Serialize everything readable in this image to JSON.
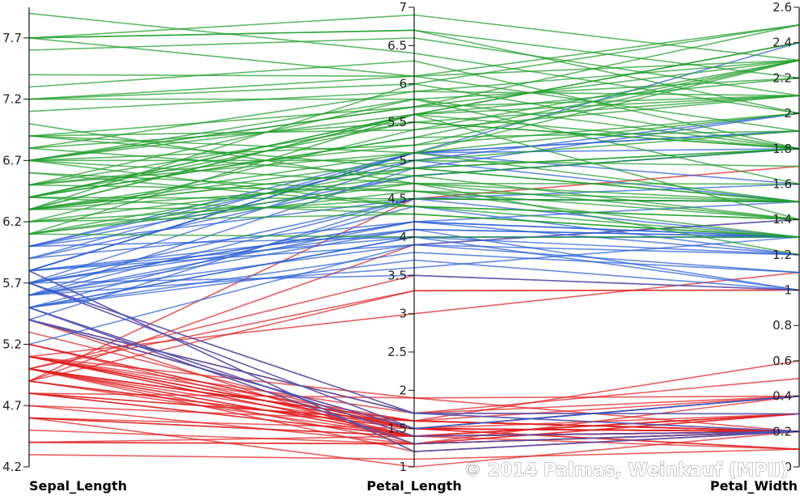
{
  "chart_data": {
    "type": "parallel-coordinates",
    "axes": [
      {
        "name": "Sepal_Length",
        "min": 4.2,
        "max": 7.95,
        "ticks": [
          4.2,
          4.7,
          5.2,
          5.7,
          6.2,
          6.7,
          7.2,
          7.7
        ],
        "tick_labels": [
          "4.2",
          "4.7",
          "5.2",
          "5.7",
          "6.2",
          "6.7",
          "7.2",
          "7.7"
        ]
      },
      {
        "name": "Petal_Length",
        "min": 1,
        "max": 7,
        "ticks": [
          1,
          1.5,
          2,
          2.5,
          3,
          3.5,
          4,
          4.5,
          5,
          5.5,
          6,
          6.5,
          7
        ],
        "tick_labels": [
          "1",
          "1.5",
          "2",
          "2.5",
          "3",
          "3.5",
          "4",
          "4.5",
          "5",
          "5.5",
          "6",
          "6.5",
          "7"
        ]
      },
      {
        "name": "Petal_Width",
        "min": 0,
        "max": 2.6,
        "ticks": [
          0,
          0.2,
          0.4,
          0.6,
          0.8,
          1,
          1.2,
          1.4,
          1.6,
          1.8,
          2,
          2.2,
          2.4,
          2.6
        ],
        "tick_labels": [
          "0",
          "0.2",
          "0.4",
          "0.6",
          "0.8",
          "1",
          "1.2",
          "1.4",
          "1.6",
          "1.8",
          "2",
          "2.2",
          "2.4",
          "2.6"
        ]
      }
    ],
    "groups": [
      {
        "color": "#e02020",
        "rows": [
          [
            5.1,
            1.4,
            0.2
          ],
          [
            4.9,
            1.4,
            0.2
          ],
          [
            4.7,
            1.3,
            0.2
          ],
          [
            4.6,
            1.5,
            0.2
          ],
          [
            5.0,
            1.4,
            0.2
          ],
          [
            5.4,
            1.7,
            0.4
          ],
          [
            4.6,
            1.4,
            0.3
          ],
          [
            5.0,
            1.5,
            0.2
          ],
          [
            4.4,
            1.4,
            0.2
          ],
          [
            4.9,
            1.5,
            0.1
          ],
          [
            5.4,
            1.5,
            0.2
          ],
          [
            4.8,
            1.6,
            0.2
          ],
          [
            4.8,
            1.4,
            0.1
          ],
          [
            4.3,
            1.1,
            0.1
          ],
          [
            5.8,
            1.2,
            0.2
          ],
          [
            5.7,
            1.5,
            0.4
          ],
          [
            5.4,
            1.3,
            0.4
          ],
          [
            5.1,
            1.4,
            0.3
          ],
          [
            5.7,
            1.7,
            0.3
          ],
          [
            5.1,
            1.5,
            0.3
          ],
          [
            5.4,
            1.7,
            0.2
          ],
          [
            5.1,
            1.5,
            0.4
          ],
          [
            4.6,
            1.0,
            0.2
          ],
          [
            5.1,
            1.7,
            0.5
          ],
          [
            4.8,
            1.9,
            0.2
          ],
          [
            5.0,
            1.6,
            0.2
          ],
          [
            5.0,
            1.6,
            0.4
          ],
          [
            5.2,
            1.5,
            0.2
          ],
          [
            5.2,
            1.4,
            0.2
          ],
          [
            4.7,
            1.6,
            0.2
          ],
          [
            4.8,
            1.6,
            0.2
          ],
          [
            5.4,
            1.5,
            0.4
          ],
          [
            5.2,
            1.5,
            0.1
          ],
          [
            5.5,
            1.4,
            0.2
          ],
          [
            4.9,
            1.5,
            0.2
          ],
          [
            5.0,
            1.2,
            0.2
          ],
          [
            5.5,
            1.3,
            0.2
          ],
          [
            4.4,
            1.3,
            0.2
          ],
          [
            5.1,
            1.5,
            0.2
          ],
          [
            5.0,
            1.3,
            0.3
          ],
          [
            4.5,
            1.3,
            0.3
          ],
          [
            4.4,
            1.3,
            0.2
          ],
          [
            5.0,
            1.6,
            0.6
          ],
          [
            5.1,
            1.9,
            0.4
          ],
          [
            4.8,
            1.4,
            0.3
          ],
          [
            5.1,
            1.6,
            0.2
          ],
          [
            4.6,
            1.4,
            0.2
          ],
          [
            5.3,
            1.5,
            0.2
          ],
          [
            5.0,
            1.4,
            0.2
          ],
          [
            4.9,
            4.5,
            1.7
          ],
          [
            4.9,
            3.3,
            1.0
          ],
          [
            5.0,
            3.5,
            1.0
          ],
          [
            5.1,
            3.0,
            1.1
          ],
          [
            5.0,
            3.3,
            1.0
          ],
          [
            4.9,
            3.9,
            1.4
          ]
        ]
      },
      {
        "color": "#2a5fd6",
        "rows": [
          [
            5.5,
            4.0,
            1.3
          ],
          [
            5.7,
            4.5,
            1.3
          ],
          [
            5.2,
            3.9,
            1.4
          ],
          [
            5.9,
            4.2,
            1.5
          ],
          [
            6.0,
            4.0,
            1.0
          ],
          [
            5.6,
            3.6,
            1.3
          ],
          [
            5.6,
            4.5,
            1.5
          ],
          [
            5.8,
            4.1,
            1.0
          ],
          [
            5.6,
            3.9,
            1.1
          ],
          [
            5.9,
            4.8,
            1.8
          ],
          [
            5.7,
            3.5,
            1.0
          ],
          [
            5.5,
            3.8,
            1.1
          ],
          [
            5.5,
            3.7,
            1.0
          ],
          [
            5.8,
            3.9,
            1.2
          ],
          [
            6.0,
            5.1,
            1.6
          ],
          [
            5.4,
            4.5,
            1.5
          ],
          [
            6.0,
            4.5,
            1.6
          ],
          [
            5.6,
            4.1,
            1.3
          ],
          [
            5.5,
            4.0,
            1.3
          ],
          [
            5.5,
            4.4,
            1.2
          ],
          [
            5.8,
            4.0,
            1.2
          ],
          [
            5.6,
            4.2,
            1.3
          ],
          [
            5.7,
            4.2,
            1.2
          ],
          [
            5.7,
            4.2,
            1.3
          ],
          [
            5.7,
            4.1,
            1.3
          ],
          [
            5.8,
            5.1,
            2.4
          ],
          [
            5.7,
            5.0,
            2.0
          ],
          [
            5.8,
            5.1,
            1.9
          ],
          [
            5.6,
            4.9,
            2.0
          ],
          [
            5.8,
            5.1,
            1.9
          ],
          [
            6.0,
            4.8,
            1.8
          ],
          [
            5.9,
            5.1,
            1.8
          ],
          [
            6.0,
            5.0,
            1.5
          ],
          [
            5.4,
            1.5,
            0.4
          ],
          [
            5.5,
            1.4,
            0.2
          ],
          [
            5.4,
            1.7,
            0.2
          ],
          [
            5.7,
            1.5,
            0.4
          ],
          [
            5.8,
            1.2,
            0.2
          ],
          [
            5.7,
            1.7,
            0.3
          ],
          [
            5.5,
            1.3,
            0.2
          ]
        ]
      },
      {
        "color": "#1f9e2a",
        "rows": [
          [
            7.0,
            4.7,
            1.4
          ],
          [
            6.4,
            4.5,
            1.5
          ],
          [
            6.9,
            4.9,
            1.5
          ],
          [
            6.5,
            4.6,
            1.5
          ],
          [
            6.3,
            4.7,
            1.6
          ],
          [
            6.6,
            4.6,
            1.3
          ],
          [
            6.7,
            4.4,
            1.4
          ],
          [
            6.2,
            4.5,
            1.5
          ],
          [
            6.1,
            4.0,
            1.3
          ],
          [
            6.3,
            4.9,
            1.5
          ],
          [
            6.1,
            4.7,
            1.2
          ],
          [
            6.4,
            4.3,
            1.3
          ],
          [
            6.6,
            4.4,
            1.4
          ],
          [
            6.8,
            4.8,
            1.4
          ],
          [
            6.7,
            5.0,
            1.7
          ],
          [
            6.7,
            4.7,
            1.5
          ],
          [
            6.3,
            4.4,
            1.3
          ],
          [
            6.1,
            4.6,
            1.4
          ],
          [
            6.2,
            4.3,
            1.3
          ],
          [
            6.3,
            6.0,
            2.5
          ],
          [
            7.1,
            5.9,
            2.1
          ],
          [
            6.3,
            5.6,
            1.8
          ],
          [
            6.5,
            5.8,
            2.2
          ],
          [
            7.6,
            6.6,
            2.1
          ],
          [
            7.3,
            6.3,
            1.8
          ],
          [
            6.7,
            5.8,
            1.8
          ],
          [
            7.2,
            6.1,
            2.5
          ],
          [
            6.5,
            5.1,
            2.0
          ],
          [
            6.4,
            5.3,
            1.9
          ],
          [
            6.8,
            5.5,
            2.1
          ],
          [
            6.4,
            5.3,
            2.3
          ],
          [
            6.5,
            5.5,
            1.8
          ],
          [
            7.7,
            6.7,
            2.2
          ],
          [
            7.7,
            6.9,
            2.3
          ],
          [
            6.9,
            5.7,
            2.3
          ],
          [
            7.7,
            6.7,
            2.0
          ],
          [
            6.3,
            4.9,
            1.8
          ],
          [
            6.7,
            5.7,
            2.1
          ],
          [
            7.2,
            6.0,
            1.8
          ],
          [
            6.2,
            4.8,
            1.8
          ],
          [
            6.1,
            4.9,
            1.8
          ],
          [
            6.4,
            5.6,
            2.1
          ],
          [
            7.2,
            5.8,
            1.6
          ],
          [
            7.4,
            6.1,
            1.9
          ],
          [
            7.9,
            6.4,
            2.0
          ],
          [
            6.4,
            5.6,
            2.2
          ],
          [
            6.3,
            5.1,
            1.5
          ],
          [
            6.1,
            5.6,
            1.4
          ],
          [
            7.7,
            6.1,
            2.3
          ],
          [
            6.3,
            5.6,
            2.4
          ],
          [
            6.4,
            5.5,
            1.8
          ],
          [
            6.9,
            5.4,
            2.1
          ],
          [
            6.7,
            5.6,
            2.4
          ],
          [
            6.9,
            5.1,
            2.3
          ],
          [
            6.8,
            5.9,
            2.3
          ],
          [
            6.7,
            5.7,
            2.5
          ],
          [
            6.7,
            5.2,
            2.3
          ],
          [
            6.3,
            5.0,
            1.9
          ],
          [
            6.5,
            5.2,
            2.0
          ],
          [
            6.2,
            5.4,
            2.3
          ]
        ]
      }
    ],
    "watermark": "© 2014 Palmas, Weinkauf (MPII)"
  },
  "colors": {
    "axis": "#111111",
    "tick_text": "#222222",
    "background": "#ffffff"
  }
}
